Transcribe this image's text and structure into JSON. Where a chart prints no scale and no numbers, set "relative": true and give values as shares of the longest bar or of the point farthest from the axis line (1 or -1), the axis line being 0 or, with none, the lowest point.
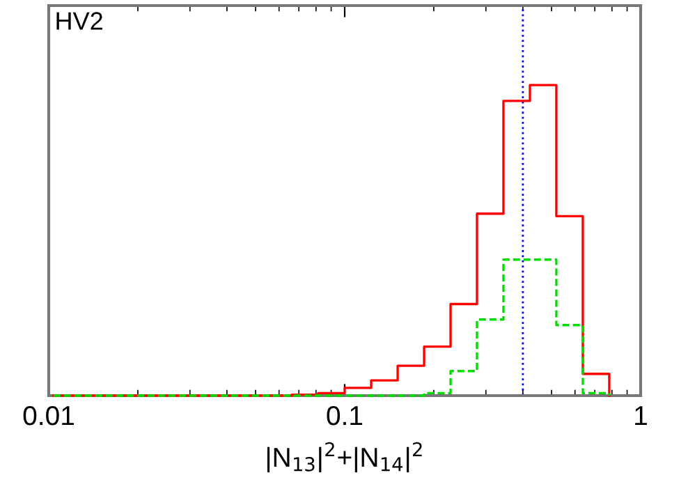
{
  "chart_data": {
    "type": "step",
    "relative": true,
    "xlabel": "|N$_{13}$|$^{2}$+|N$_{14}$|$^{2}$",
    "annotations": [
      "HV2"
    ],
    "log": "x",
    "xlim": [
      0.01,
      1
    ],
    "xticks": [
      {
        "value": 0.01,
        "label": "0.01"
      },
      {
        "value": 0.1,
        "label": "0.1"
      },
      {
        "value": 1,
        "label": "1"
      }
    ],
    "grid": false,
    "legend": false,
    "x": [
      0.01039,
      0.01276,
      0.01568,
      0.01927,
      0.02367,
      0.02908,
      0.03573,
      0.04389,
      0.05393,
      0.06625,
      0.0814,
      0.1,
      0.1229,
      0.151,
      0.1855,
      0.2279,
      0.2799,
      0.3439,
      0.4225,
      0.519,
      0.6377,
      0.7834
    ],
    "series": [
      {
        "color": "#ff0000",
        "line_style": "solid",
        "values": [
          0,
          0,
          0,
          0,
          0,
          0,
          0,
          0,
          0,
          0.003,
          0.008,
          0.025,
          0.049,
          0.096,
          0.158,
          0.295,
          0.586,
          0.949,
          1.0,
          0.578,
          0.07,
          0
        ]
      },
      {
        "color": "#00dd00",
        "line_style": "dashed",
        "values": [
          0,
          0,
          0,
          0,
          0,
          0,
          0,
          0,
          0,
          0,
          0,
          0,
          0,
          0,
          0.008,
          0.079,
          0.245,
          0.438,
          0.438,
          0.227,
          0.008,
          0
        ]
      }
    ],
    "ref_lines": [
      {
        "axis": "x",
        "value": 0.4,
        "color": "#0000ff",
        "line_style": "dotted"
      }
    ]
  }
}
